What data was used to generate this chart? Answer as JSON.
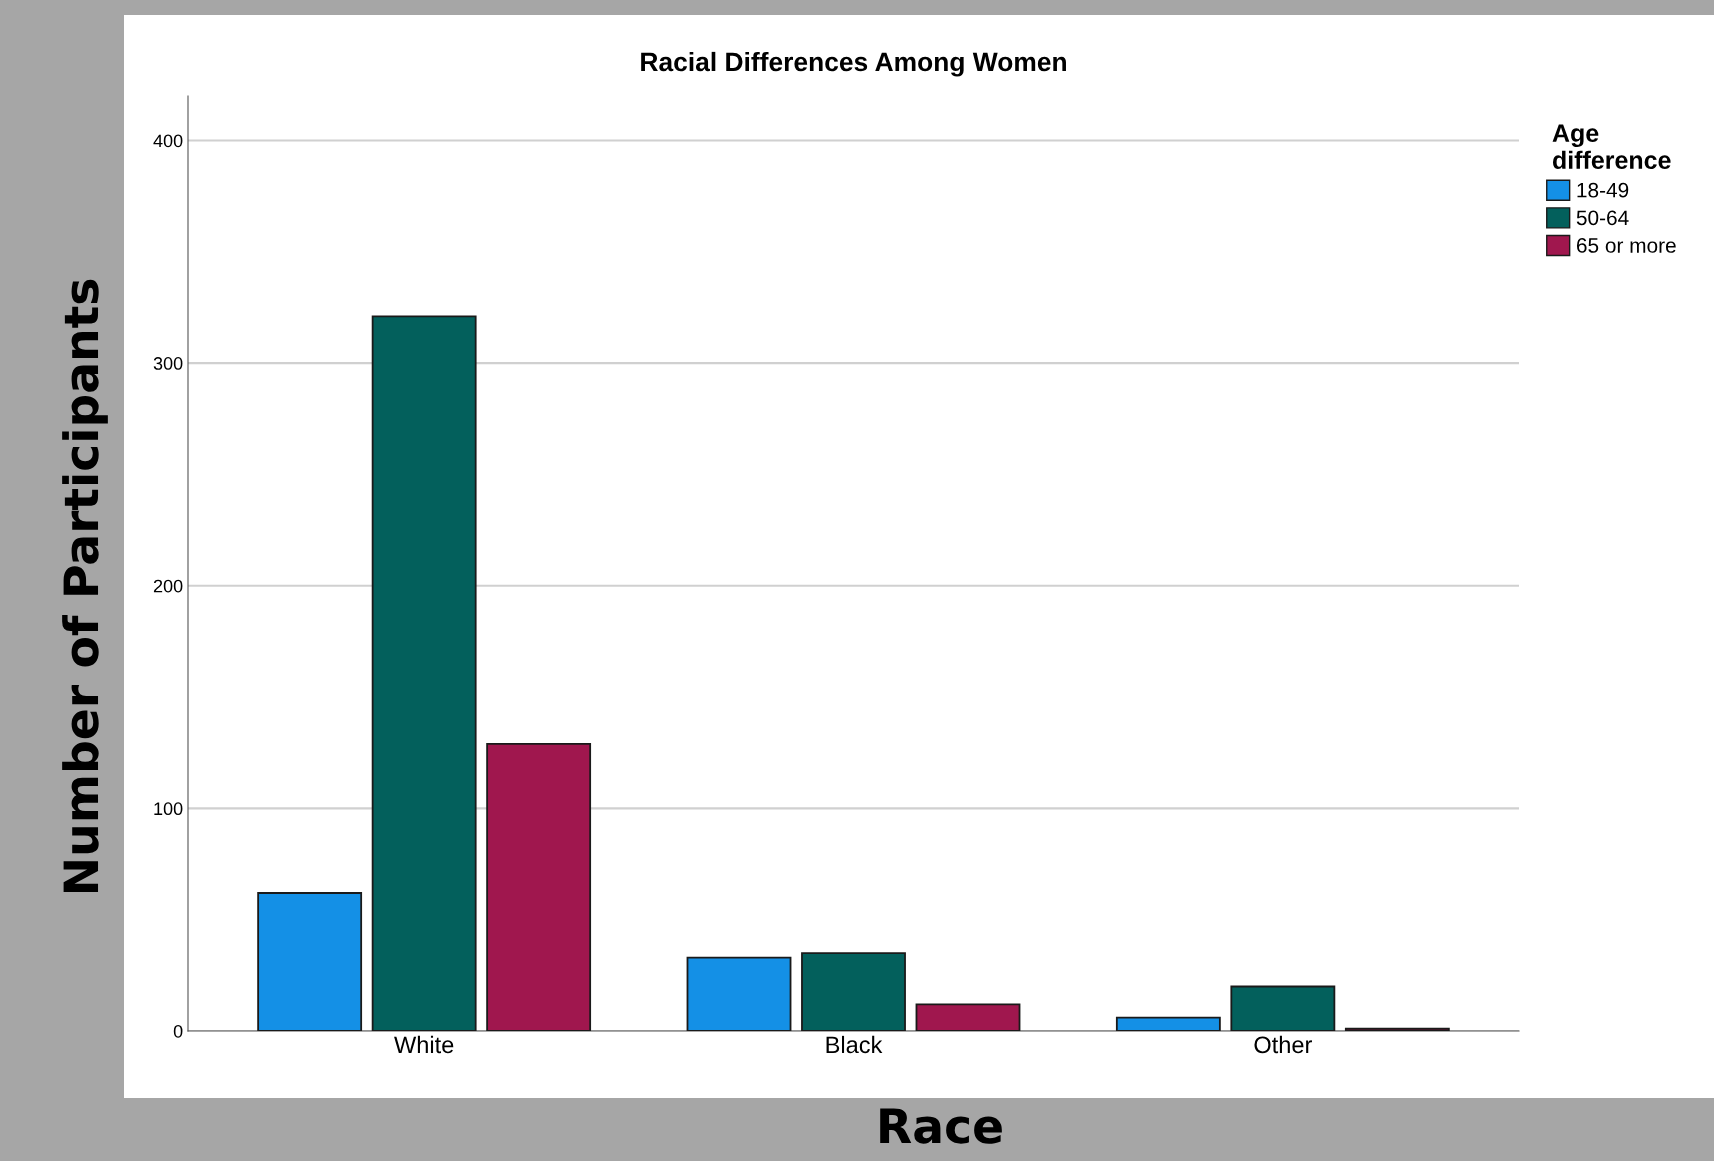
{
  "chart_data": {
    "type": "bar",
    "title": "Racial Differences Among Women",
    "xlabel": "Race",
    "ylabel": "Number of Participants",
    "legend_title": "Age difference",
    "categories": [
      "White",
      "Black",
      "Other"
    ],
    "series": [
      {
        "name": "18-49",
        "color": "#1490e6",
        "values": [
          62,
          33,
          6
        ]
      },
      {
        "name": "50-64",
        "color": "#03605c",
        "values": [
          321,
          35,
          20
        ]
      },
      {
        "name": "65 or more",
        "color": "#a0174e",
        "values": [
          129,
          12,
          1
        ]
      }
    ],
    "ylim": [
      0,
      420
    ],
    "yticks": [
      0,
      100,
      200,
      300,
      400
    ],
    "grid": "y",
    "legend": "right"
  }
}
